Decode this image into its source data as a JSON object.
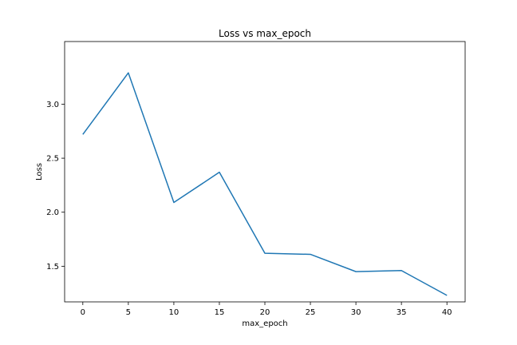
{
  "chart_data": {
    "type": "line",
    "title": "Loss vs max_epoch",
    "xlabel": "max_epoch",
    "ylabel": "Loss",
    "x": [
      0,
      5,
      10,
      15,
      20,
      25,
      30,
      35,
      40
    ],
    "series": [
      {
        "values": [
          2.72,
          3.29,
          2.09,
          2.37,
          1.62,
          1.61,
          1.45,
          1.46,
          1.23
        ],
        "color": "#1f77b4"
      }
    ],
    "xticks": [
      0,
      5,
      10,
      15,
      20,
      25,
      30,
      35,
      40
    ],
    "yticks": [
      1.5,
      2.0,
      2.5,
      3.0
    ],
    "ytick_labels": [
      "1.5",
      "2.0",
      "2.5",
      "3.0"
    ],
    "xlim": [
      -2,
      42
    ],
    "ylim": [
      1.17,
      3.58
    ],
    "grid": false,
    "legend": "none"
  }
}
